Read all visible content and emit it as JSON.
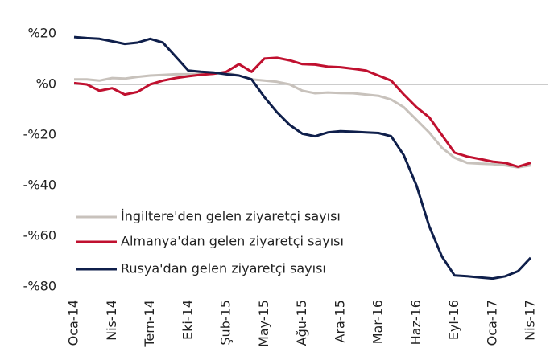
{
  "chart_data": {
    "type": "line",
    "categories": [
      "Oca-14",
      null,
      null,
      "Nis-14",
      null,
      null,
      "Tem-14",
      null,
      null,
      "Eki-14",
      null,
      null,
      "Şub-15",
      null,
      null,
      "May-15",
      null,
      null,
      "Ağu-15",
      null,
      null,
      "Ara-15",
      null,
      null,
      "Mar-16",
      null,
      null,
      "Haz-16",
      null,
      null,
      "Eyl-16",
      null,
      null,
      "Oca-17",
      null,
      null,
      "Nis-17"
    ],
    "series": [
      {
        "name": "İngiltere'den gelen ziyaretçi sayısı",
        "color": "#c8c2bc",
        "values": [
          2,
          2,
          1.5,
          2.5,
          2.3,
          3,
          3.5,
          3.7,
          4,
          4,
          4.2,
          4.3,
          4.5,
          3.5,
          2,
          1.5,
          1,
          0,
          -2.5,
          -3.5,
          -3.2,
          -3.4,
          -3.5,
          -4,
          -4.5,
          -6,
          -9,
          -14,
          -19,
          -25,
          -29,
          -31,
          -31.3,
          -31.5,
          -32,
          -32.8,
          -32
        ]
      },
      {
        "name": "Almanya'dan gelen ziyaretçi sayısı",
        "color": "#c0102f",
        "values": [
          0.5,
          0,
          -2.5,
          -1.5,
          -4,
          -3,
          0,
          1.5,
          2.5,
          3.2,
          3.8,
          4.2,
          5,
          8,
          5,
          10.2,
          10.5,
          9.5,
          8,
          7.8,
          7,
          6.8,
          6.2,
          5.5,
          3.5,
          1.5,
          -4,
          -9,
          -13,
          -20,
          -27,
          -28.5,
          -29.5,
          -30.5,
          -31,
          -32.5,
          -31
        ]
      },
      {
        "name": "Rusya'dan gelen ziyaretçi sayısı",
        "color": "#0f1f4b",
        "values": [
          18.7,
          18.3,
          18,
          17,
          16,
          16.5,
          18,
          16.5,
          11,
          5.5,
          5,
          4.7,
          4,
          3.5,
          2,
          -5,
          -11,
          -16,
          -19.5,
          -20.5,
          -19,
          -18.5,
          -18.7,
          -19,
          -19.2,
          -20.5,
          -28,
          -40,
          -56,
          -68,
          -75.5,
          -75.8,
          -76.3,
          -76.7,
          -75.8,
          -73.8,
          -68.5
        ]
      }
    ],
    "ylim": [
      -80,
      20
    ],
    "yticks": [
      {
        "value": 20,
        "label": "%20"
      },
      {
        "value": 0,
        "label": "%0"
      },
      {
        "value": -20,
        "label": "-%20"
      },
      {
        "value": -40,
        "label": "-%40"
      },
      {
        "value": -60,
        "label": "-%60"
      },
      {
        "value": -80,
        "label": "-%80"
      }
    ],
    "zero_line": true,
    "legend": "lower left"
  }
}
